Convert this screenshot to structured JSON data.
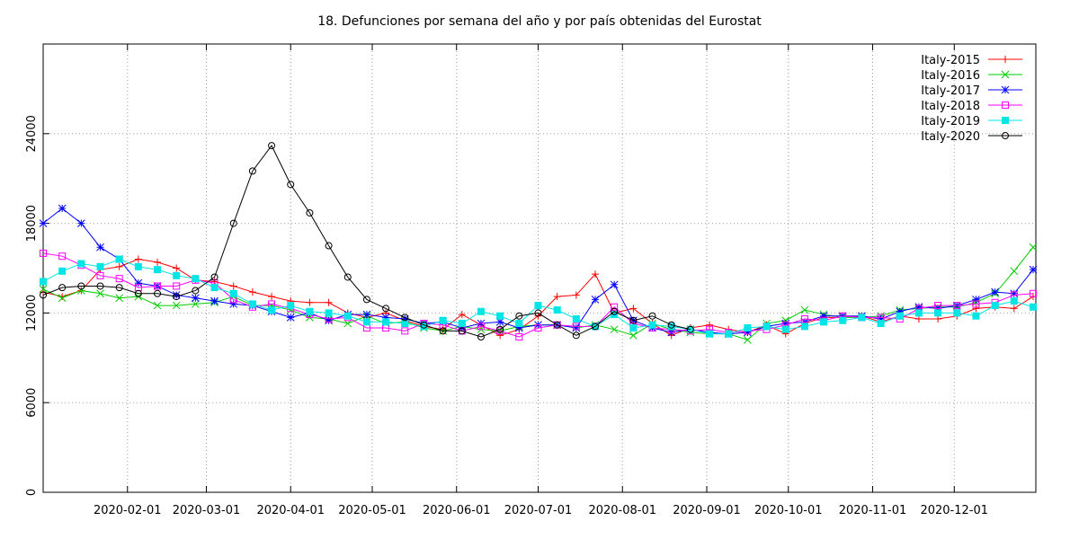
{
  "chart_data": {
    "type": "line",
    "title": "18. Defunciones por semana del año y por país obtenidas del Eurostat",
    "xlabel": "",
    "ylabel": "",
    "x_ticks": [
      "2020-02-01",
      "2020-03-01",
      "2020-04-01",
      "2020-05-01",
      "2020-06-01",
      "2020-07-01",
      "2020-08-01",
      "2020-09-01",
      "2020-10-01",
      "2020-11-01",
      "2020-12-01"
    ],
    "y_ticks": [
      0,
      6000,
      12000,
      18000,
      24000
    ],
    "ylim": [
      0,
      30000
    ],
    "xlim": [
      "2020-01-01",
      "2020-12-31"
    ],
    "grid": true,
    "legend_position": "top-right",
    "weekly_dates": [
      "2020-01-01",
      "2020-01-08",
      "2020-01-15",
      "2020-01-22",
      "2020-01-29",
      "2020-02-05",
      "2020-02-12",
      "2020-02-19",
      "2020-02-26",
      "2020-03-04",
      "2020-03-11",
      "2020-03-18",
      "2020-03-25",
      "2020-04-01",
      "2020-04-08",
      "2020-04-15",
      "2020-04-22",
      "2020-04-29",
      "2020-05-06",
      "2020-05-13",
      "2020-05-20",
      "2020-05-27",
      "2020-06-03",
      "2020-06-10",
      "2020-06-17",
      "2020-06-24",
      "2020-07-01",
      "2020-07-08",
      "2020-07-15",
      "2020-07-22",
      "2020-07-29",
      "2020-08-05",
      "2020-08-12",
      "2020-08-19",
      "2020-08-26",
      "2020-09-02",
      "2020-09-09",
      "2020-09-16",
      "2020-09-23",
      "2020-09-30",
      "2020-10-07",
      "2020-10-14",
      "2020-10-21",
      "2020-10-28",
      "2020-11-04",
      "2020-11-11",
      "2020-11-18",
      "2020-11-25",
      "2020-12-02",
      "2020-12-09",
      "2020-12-16",
      "2020-12-23",
      "2020-12-30"
    ],
    "series": [
      {
        "name": "Italy-2015",
        "color": "#ff0000",
        "marker": "plus",
        "start_index": 0,
        "values": [
          13400,
          13100,
          13500,
          14900,
          15100,
          15600,
          15400,
          15000,
          14200,
          14100,
          13800,
          13400,
          13100,
          12800,
          12700,
          12700,
          12000,
          11700,
          12000,
          11500,
          11100,
          10900,
          11900,
          11200,
          10500,
          10900,
          11800,
          13100,
          13200,
          14600,
          12000,
          12300,
          11300,
          10500,
          11000,
          11200,
          10900,
          10700,
          11200,
          10600,
          11300,
          11700,
          11700,
          11800,
          11400,
          11800,
          11600,
          11600,
          11800,
          12300,
          12400,
          12300,
          13100
        ]
      },
      {
        "name": "Italy-2016",
        "color": "#00cc00",
        "marker": "x",
        "start_index": 0,
        "values": [
          13600,
          13000,
          13500,
          13300,
          13000,
          13100,
          12500,
          12500,
          12600,
          12700,
          13100,
          12500,
          12500,
          12200,
          11700,
          11600,
          11300,
          11800,
          11300,
          11400,
          11000,
          10800,
          11100,
          10900,
          10800,
          11100,
          11200,
          11200,
          11000,
          11200,
          10900,
          10500,
          11300,
          10900,
          10700,
          10600,
          10600,
          10200,
          11300,
          11500,
          12200,
          11900,
          11700,
          11700,
          11800,
          12200,
          12300,
          12400,
          12400,
          12700,
          13300,
          14800,
          16400
        ]
      },
      {
        "name": "Italy-2017",
        "color": "#0000ff",
        "marker": "star",
        "start_index": 0,
        "values": [
          18000,
          19000,
          18000,
          16400,
          15600,
          14000,
          13800,
          13200,
          13000,
          12800,
          12600,
          12500,
          12100,
          11700,
          12000,
          11500,
          11900,
          11900,
          11700,
          11600,
          11300,
          11400,
          11000,
          11300,
          11400,
          11000,
          11200,
          11200,
          11000,
          12900,
          13900,
          11500,
          11000,
          10700,
          10900,
          10700,
          10600,
          10700,
          11100,
          11300,
          11400,
          11800,
          11800,
          11800,
          11600,
          12100,
          12400,
          12300,
          12500,
          12900,
          13400,
          13300,
          14900
        ]
      },
      {
        "name": "Italy-2018",
        "color": "#ff00ff",
        "marker": "square-open",
        "start_index": 0,
        "values": [
          16000,
          15800,
          15200,
          14500,
          14300,
          13700,
          13800,
          13800,
          14200,
          14000,
          12900,
          12400,
          12600,
          12300,
          11900,
          11600,
          11700,
          11000,
          11000,
          10800,
          11300,
          11200,
          10800,
          11100,
          10800,
          10400,
          11000,
          11200,
          11100,
          11100,
          12400,
          11300,
          11000,
          10900,
          10800,
          10900,
          10700,
          10800,
          10900,
          11200,
          11600,
          11500,
          11800,
          11700,
          11700,
          11600,
          12300,
          12500,
          12500,
          12600,
          12700,
          13200,
          13300
        ]
      },
      {
        "name": "Italy-2019",
        "color": "#00e5e5",
        "marker": "square-filled",
        "start_index": 0,
        "values": [
          14100,
          14800,
          15300,
          15100,
          15600,
          15100,
          14900,
          14500,
          14300,
          13700,
          13300,
          12600,
          12200,
          12500,
          12100,
          12000,
          11800,
          11400,
          11400,
          11300,
          11100,
          11500,
          11300,
          12100,
          11800,
          11300,
          12500,
          12200,
          11600,
          11100,
          11900,
          11000,
          11200,
          11100,
          10900,
          10600,
          10600,
          11000,
          11100,
          10900,
          11100,
          11400,
          11500,
          11700,
          11300,
          11800,
          12000,
          12000,
          12000,
          11800,
          12500,
          12800,
          12400
        ]
      },
      {
        "name": "Italy-2020",
        "color": "#000000",
        "marker": "circle-open",
        "start_index": 0,
        "values": [
          13200,
          13700,
          13800,
          13800,
          13700,
          13300,
          13300,
          13100,
          13500,
          14400,
          18000,
          21500,
          23200,
          20600,
          18700,
          16500,
          14400,
          12900,
          12300,
          11700,
          11200,
          10800,
          10800,
          10400,
          10900,
          11800,
          12000,
          11200,
          10500,
          11100,
          12100,
          11500,
          11800,
          11200,
          10900
        ]
      }
    ]
  }
}
